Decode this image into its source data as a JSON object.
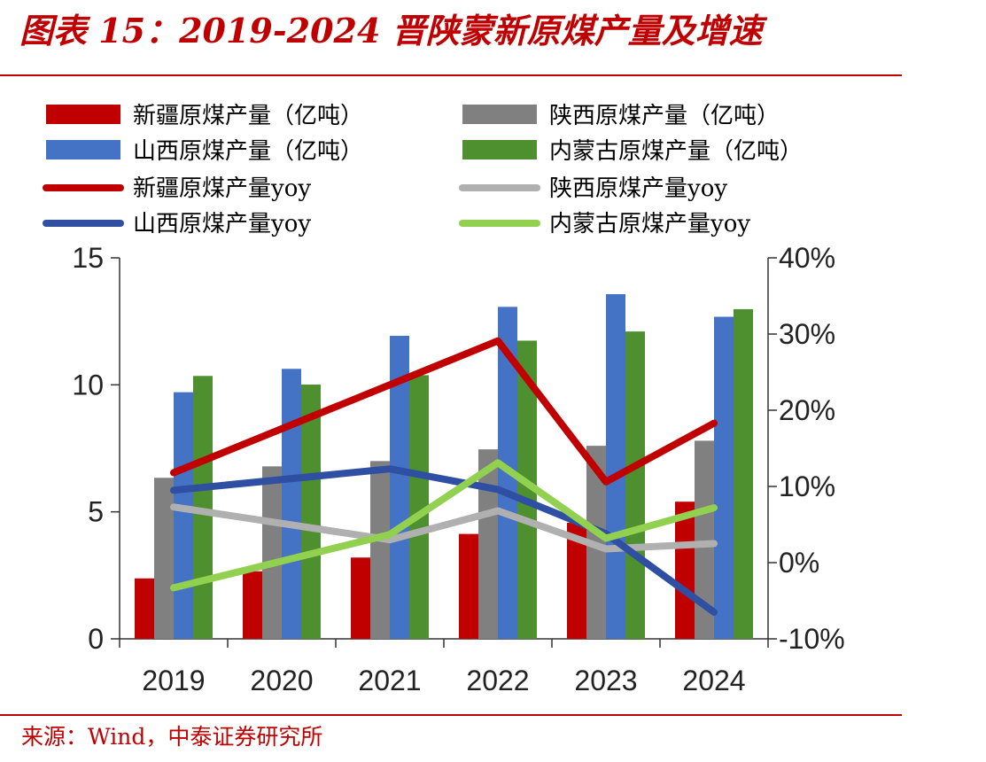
{
  "header": {
    "title": "图表 15：2019-2024 晋陕蒙新原煤产量及增速"
  },
  "footer": {
    "source": "来源：Wind，中泰证券研究所"
  },
  "chart_data": {
    "type": "bar",
    "categories": [
      "2019",
      "2020",
      "2021",
      "2022",
      "2023",
      "2024"
    ],
    "y_left": {
      "ylim": [
        0,
        15
      ],
      "ticks": [
        "0",
        "5",
        "10",
        "15"
      ]
    },
    "y_right": {
      "ylim": [
        -10,
        40
      ],
      "ticks": [
        "-10%",
        "0%",
        "10%",
        "20%",
        "30%",
        "40%"
      ]
    },
    "bar_series": [
      {
        "name": "新疆原煤产量（亿吨）",
        "color": "#C00000",
        "values": [
          2.38,
          2.66,
          3.2,
          4.13,
          4.57,
          5.4
        ]
      },
      {
        "name": "陕西原煤产量（亿吨）",
        "color": "#808080",
        "values": [
          6.34,
          6.79,
          7.0,
          7.46,
          7.6,
          7.8
        ]
      },
      {
        "name": "山西原煤产量（亿吨）",
        "color": "#4472C4",
        "values": [
          9.71,
          10.63,
          11.93,
          13.07,
          13.57,
          12.68
        ]
      },
      {
        "name": "内蒙古原煤产量（亿吨）",
        "color": "#4E8F2F",
        "values": [
          10.35,
          10.01,
          10.38,
          11.74,
          12.1,
          12.98
        ]
      }
    ],
    "line_series": [
      {
        "name": "新疆原煤产量yoy",
        "color": "#C00000",
        "values": [
          11.8,
          null,
          null,
          29.1,
          10.6,
          18.3
        ]
      },
      {
        "name": "陕西原煤产量yoy",
        "color": "#B0B0B0",
        "values": [
          7.3,
          null,
          3.0,
          6.8,
          1.8,
          2.5
        ]
      },
      {
        "name": "山西原煤产量yoy",
        "color": "#2F4FA2",
        "values": [
          9.5,
          null,
          12.3,
          9.6,
          3.8,
          -6.5
        ]
      },
      {
        "name": "内蒙古原煤产量yoy",
        "color": "#92D050",
        "values": [
          -3.3,
          null,
          3.7,
          13.1,
          3.2,
          7.2
        ]
      }
    ],
    "legend_position": "top"
  }
}
